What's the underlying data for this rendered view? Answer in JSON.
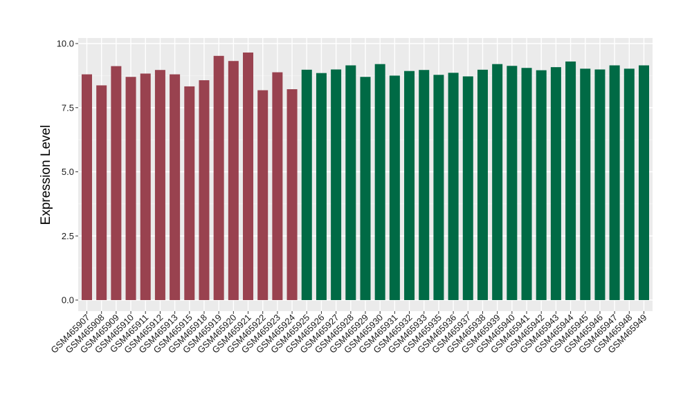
{
  "chart_data": {
    "type": "bar",
    "title": "",
    "xlabel": "",
    "ylabel": "Expression Level",
    "ylim": [
      0,
      10
    ],
    "yticks": [
      0.0,
      2.5,
      5.0,
      7.5,
      10.0
    ],
    "ytick_labels": [
      "0.0",
      "2.5",
      "5.0",
      "7.5",
      "10.0"
    ],
    "grid": true,
    "legend": "none",
    "colors": {
      "group_a": "#99424f",
      "group_b": "#006a45",
      "panel_bg": "#ebebeb",
      "grid_major": "#ffffff"
    },
    "categories": [
      "GSM465907",
      "GSM465908",
      "GSM465909",
      "GSM465910",
      "GSM465911",
      "GSM465912",
      "GSM465913",
      "GSM465915",
      "GSM465918",
      "GSM465919",
      "GSM465920",
      "GSM465921",
      "GSM465922",
      "GSM465923",
      "GSM465924",
      "GSM465925",
      "GSM465926",
      "GSM465927",
      "GSM465928",
      "GSM465929",
      "GSM465930",
      "GSM465931",
      "GSM465932",
      "GSM465933",
      "GSM465935",
      "GSM465936",
      "GSM465937",
      "GSM465938",
      "GSM465939",
      "GSM465940",
      "GSM465941",
      "GSM465942",
      "GSM465943",
      "GSM465944",
      "GSM465945",
      "GSM465946",
      "GSM465947",
      "GSM465948",
      "GSM465949"
    ],
    "values": [
      8.8,
      8.37,
      9.12,
      8.7,
      8.83,
      8.97,
      8.8,
      8.33,
      8.57,
      9.52,
      9.32,
      9.65,
      8.18,
      8.88,
      8.22,
      8.98,
      8.85,
      8.99,
      9.15,
      8.7,
      9.2,
      8.75,
      8.93,
      8.97,
      8.78,
      8.86,
      8.72,
      8.98,
      9.2,
      9.13,
      9.05,
      8.96,
      9.08,
      9.3,
      9.02,
      8.99,
      9.15,
      9.02,
      9.15
    ],
    "groups": [
      "a",
      "a",
      "a",
      "a",
      "a",
      "a",
      "a",
      "a",
      "a",
      "a",
      "a",
      "a",
      "a",
      "a",
      "a",
      "b",
      "b",
      "b",
      "b",
      "b",
      "b",
      "b",
      "b",
      "b",
      "b",
      "b",
      "b",
      "b",
      "b",
      "b",
      "b",
      "b",
      "b",
      "b",
      "b",
      "b",
      "b",
      "b",
      "b"
    ]
  }
}
